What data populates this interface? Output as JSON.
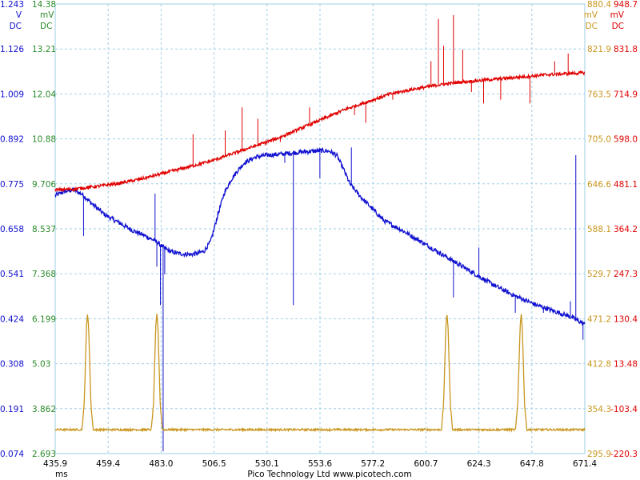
{
  "footer": {
    "text": "Pico Technology Ltd   www.picotech.com"
  },
  "colors": {
    "ch_a": "#1010d0",
    "ch_b": "#2a8a2a",
    "ch_c": "#c8961e",
    "ch_d": "#e00000",
    "grid": "#9ecfe6",
    "axis_text": "#000000"
  },
  "chart_data": {
    "type": "line",
    "title": "",
    "grid": true,
    "x_unit": "ms",
    "xlim": [
      435.9,
      671.4
    ],
    "x_ticks": [
      "435.9",
      "459.4",
      "483.0",
      "506.5",
      "530.1",
      "553.6",
      "577.2",
      "600.7",
      "624.3",
      "647.8",
      "671.4"
    ],
    "axes": [
      {
        "id": "A",
        "side": "left",
        "unit": "V",
        "coupling": "DC",
        "color": "#1010d0",
        "ylim": [
          0.074,
          1.243
        ],
        "ticks": [
          "1.243",
          "1.126",
          "1.009",
          "0.892",
          "0.775",
          "0.658",
          "0.541",
          "0.424",
          "0.308",
          "0.191",
          "0.074"
        ]
      },
      {
        "id": "B",
        "side": "left",
        "unit": "mV",
        "coupling": "DC",
        "color": "#2a8a2a",
        "ylim": [
          2.693,
          14.38
        ],
        "ticks": [
          "14.38",
          "13.21",
          "12.04",
          "10.88",
          "9.706",
          "8.537",
          "7.368",
          "6.199",
          "5.03",
          "3.862",
          "2.693"
        ]
      },
      {
        "id": "C",
        "side": "right",
        "unit": "mV",
        "coupling": "DC",
        "color": "#c8961e",
        "ylim": [
          295.9,
          880.4
        ],
        "ticks": [
          "880.4",
          "821.9",
          "763.5",
          "705.0",
          "646.6",
          "588.1",
          "529.7",
          "471.2",
          "412.8",
          "354.3",
          "295.9"
        ]
      },
      {
        "id": "D",
        "side": "right",
        "unit": "mV",
        "coupling": "DC",
        "color": "#e00000",
        "ylim": [
          -220.3,
          948.7
        ],
        "ticks": [
          "948.7",
          "831.8",
          "714.9",
          "598.0",
          "481.1",
          "364.2",
          "247.3",
          "130.4",
          "13.48",
          "-103.4",
          "-220.3"
        ]
      }
    ],
    "series": [
      {
        "axis": "A",
        "color": "#1010d0",
        "noise": 0.006,
        "x": [
          435.9,
          440,
          444,
          448,
          452,
          458,
          465,
          470,
          476,
          481,
          484,
          487,
          490,
          493,
          496,
          499,
          502,
          505,
          508,
          511,
          514,
          517,
          520,
          525,
          530,
          535,
          540,
          545,
          550,
          555,
          558,
          561,
          564,
          567,
          572,
          577,
          582,
          590,
          600,
          610,
          620,
          630,
          640,
          650,
          660,
          665,
          671.4
        ],
        "y": [
          0.745,
          0.755,
          0.76,
          0.748,
          0.725,
          0.695,
          0.672,
          0.655,
          0.64,
          0.625,
          0.61,
          0.6,
          0.595,
          0.593,
          0.592,
          0.594,
          0.6,
          0.625,
          0.69,
          0.75,
          0.785,
          0.81,
          0.83,
          0.845,
          0.85,
          0.852,
          0.855,
          0.858,
          0.86,
          0.862,
          0.86,
          0.85,
          0.815,
          0.775,
          0.74,
          0.71,
          0.68,
          0.655,
          0.62,
          0.585,
          0.55,
          0.515,
          0.485,
          0.46,
          0.44,
          0.43,
          0.41
        ],
        "spikes": [
          [
            448.5,
            0.64
          ],
          [
            480.3,
            0.75
          ],
          [
            481.1,
            0.56
          ],
          [
            482.7,
            0.46
          ],
          [
            483.9,
            0.08
          ],
          [
            484.6,
            0.54
          ],
          [
            538.0,
            0.83
          ],
          [
            541.8,
            0.46
          ],
          [
            553.6,
            0.79
          ],
          [
            567.6,
            0.87
          ],
          [
            613.0,
            0.48
          ],
          [
            624.3,
            0.61
          ],
          [
            640.5,
            0.44
          ],
          [
            653.0,
            0.44
          ],
          [
            665.0,
            0.47
          ],
          [
            667.4,
            0.85
          ],
          [
            670.6,
            0.37
          ]
        ]
      },
      {
        "axis": "C",
        "color": "#c8961e",
        "noise": 1.3,
        "x": [
          435.9,
          447.8,
          448.8,
          449.8,
          450.3,
          450.8,
          451.8,
          452.8,
          478.6,
          479.6,
          480.6,
          481.1,
          481.6,
          482.6,
          483.6,
          607.6,
          608.6,
          609.6,
          610.1,
          610.6,
          611.6,
          612.6,
          640.6,
          641.6,
          642.6,
          643.1,
          643.6,
          644.6,
          645.6,
          671.4
        ],
        "y": [
          327,
          327,
          360,
          460,
          478,
          460,
          360,
          327,
          327,
          360,
          460,
          478,
          460,
          360,
          327,
          327,
          360,
          460,
          478,
          460,
          360,
          327,
          327,
          360,
          460,
          478,
          460,
          360,
          327,
          327
        ]
      },
      {
        "axis": "D",
        "color": "#e00000",
        "noise": 4.0,
        "x": [
          435.9,
          445,
          455,
          465,
          475,
          485,
          495,
          505,
          515,
          525,
          535,
          545,
          555,
          565,
          575,
          585,
          595,
          605,
          615,
          625,
          635,
          645,
          655,
          665,
          671.4
        ],
        "y": [
          465,
          468,
          475,
          483,
          495,
          510,
          525,
          540,
          560,
          580,
          600,
          625,
          650,
          675,
          695,
          715,
          727,
          737,
          745,
          750,
          755,
          760,
          765,
          768,
          770
        ],
        "spikes": [
          [
            497.2,
            610
          ],
          [
            511.5,
            620
          ],
          [
            519.0,
            680
          ],
          [
            526.0,
            650
          ],
          [
            536.0,
            590
          ],
          [
            549.0,
            680
          ],
          [
            569.0,
            660
          ],
          [
            574.0,
            640
          ],
          [
            586.0,
            700
          ],
          [
            603.0,
            800
          ],
          [
            606.3,
            910
          ],
          [
            608.6,
            840
          ],
          [
            613.0,
            920
          ],
          [
            617.1,
            830
          ],
          [
            621.0,
            720
          ],
          [
            626.4,
            690
          ],
          [
            634.0,
            700
          ],
          [
            647.0,
            690
          ],
          [
            658.0,
            800
          ],
          [
            664.0,
            820
          ]
        ]
      }
    ]
  }
}
